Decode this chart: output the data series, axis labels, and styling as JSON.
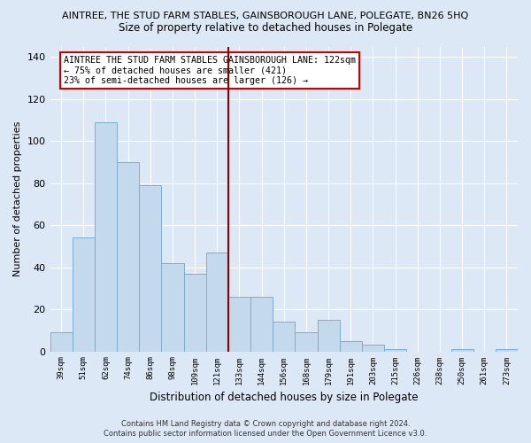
{
  "title": "AINTREE, THE STUD FARM STABLES, GAINSBOROUGH LANE, POLEGATE, BN26 5HQ",
  "subtitle": "Size of property relative to detached houses in Polegate",
  "xlabel": "Distribution of detached houses by size in Polegate",
  "ylabel": "Number of detached properties",
  "categories": [
    "39sqm",
    "51sqm",
    "62sqm",
    "74sqm",
    "86sqm",
    "98sqm",
    "109sqm",
    "121sqm",
    "133sqm",
    "144sqm",
    "156sqm",
    "168sqm",
    "179sqm",
    "191sqm",
    "203sqm",
    "215sqm",
    "226sqm",
    "238sqm",
    "250sqm",
    "261sqm",
    "273sqm"
  ],
  "values": [
    9,
    54,
    109,
    90,
    79,
    42,
    37,
    47,
    26,
    26,
    14,
    9,
    15,
    5,
    3,
    1,
    0,
    0,
    1,
    0,
    1
  ],
  "bar_color": "#c5d9ec",
  "bar_edge_color": "#7aaecf",
  "vline_x_index": 7,
  "vline_color": "#8b0000",
  "annotation_line1": "AINTREE THE STUD FARM STABLES GAINSBOROUGH LANE: 122sqm",
  "annotation_line2": "← 75% of detached houses are smaller (421)",
  "annotation_line3": "23% of semi-detached houses are larger (126) →",
  "annotation_box_color": "#ffffff",
  "annotation_box_edge": "#cc0000",
  "ylim": [
    0,
    145
  ],
  "yticks": [
    0,
    20,
    40,
    60,
    80,
    100,
    120,
    140
  ],
  "background_color": "#dce8f5",
  "grid_color": "#ffffff",
  "footer_line1": "Contains HM Land Registry data © Crown copyright and database right 2024.",
  "footer_line2": "Contains public sector information licensed under the Open Government Licence v3.0."
}
